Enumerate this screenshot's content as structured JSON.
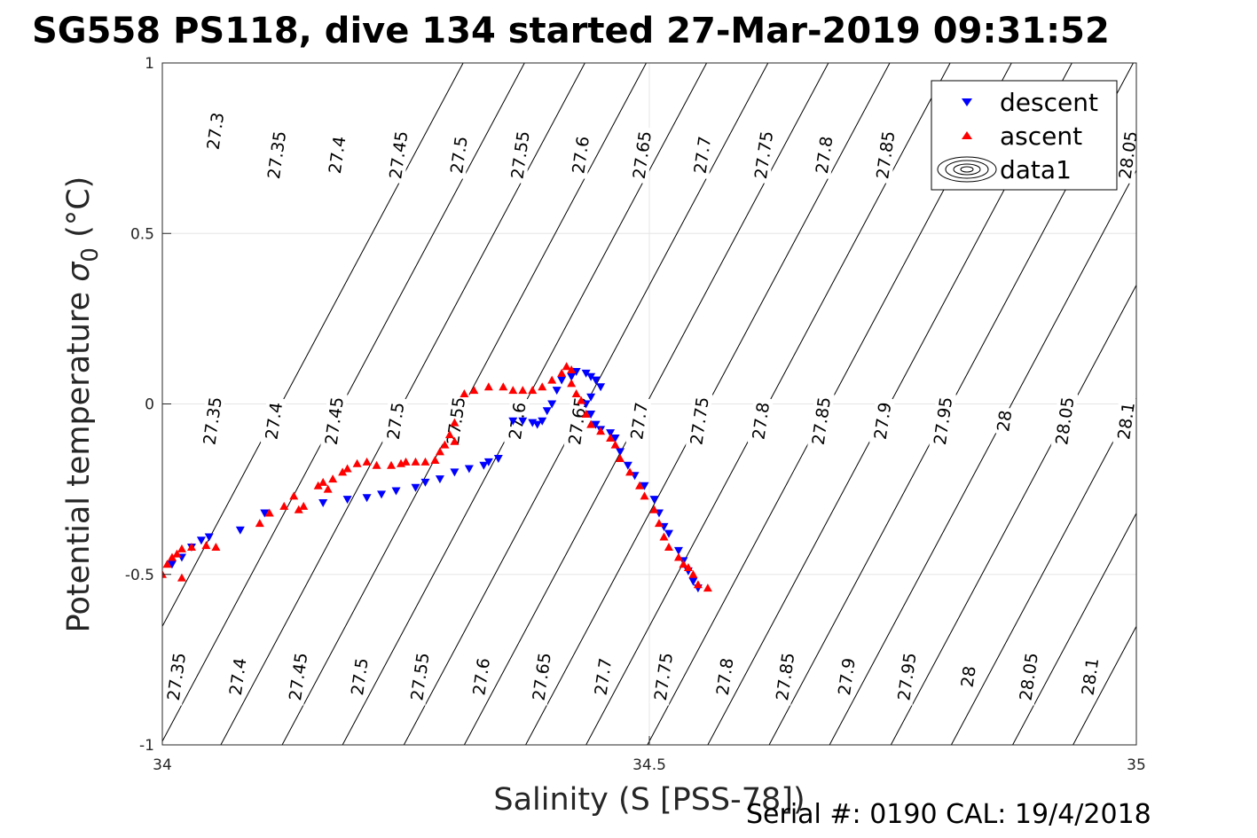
{
  "figure": {
    "title": "SG558 PS118, dive 134 started 27-Mar-2019 09:31:52",
    "footer": "Serial #: 0190  CAL: 19/4/2018"
  },
  "chart_data": {
    "type": "scatter",
    "title": "SG558 PS118, dive 134 started 27-Mar-2019 09:31:52",
    "xlabel": "Salinity (S [PSS-78])",
    "ylabel": "Potential temperature σ₀ (°C)",
    "ylabel_parts": {
      "main": "Potential temperature ",
      "sym": "σ",
      "sub": "0",
      "unit": " (°C)"
    },
    "xlim": [
      34,
      35
    ],
    "ylim": [
      -1,
      1
    ],
    "xticks": [
      34,
      34.5,
      35
    ],
    "xtick_labels": [
      "34",
      "34.5",
      "35"
    ],
    "yticks": [
      -1,
      -0.5,
      0,
      0.5,
      1
    ],
    "ytick_labels": [
      "-1",
      "-0.5",
      "0",
      "0.5",
      "1"
    ],
    "grid": true,
    "legend_position": "top-right",
    "colors": {
      "descent": "#0000ff",
      "ascent": "#ff0000",
      "contour": "#000000",
      "grid": "#e6e6e6"
    },
    "legend": [
      {
        "name": "descent",
        "marker": "triangle-down",
        "color": "#0000ff"
      },
      {
        "name": "ascent",
        "marker": "triangle-up",
        "color": "#ff0000"
      },
      {
        "name": "data1",
        "marker": "contour-ellipses",
        "color": "#000000"
      }
    ],
    "density_contours": {
      "levels": [
        27.3,
        27.35,
        27.4,
        27.45,
        27.5,
        27.55,
        27.6,
        27.65,
        27.7,
        27.75,
        27.8,
        27.85,
        27.9,
        27.95,
        28.0,
        28.05,
        28.1
      ],
      "s_at_t_minus1": [
        33.935,
        33.998,
        34.06,
        34.123,
        34.185,
        34.248,
        34.31,
        34.373,
        34.435,
        34.498,
        34.56,
        34.623,
        34.685,
        34.748,
        34.81,
        34.873,
        34.935
      ],
      "t_slope_per_psu": 5.35,
      "labels": [
        {
          "text": "27.35",
          "s": 34.015,
          "t": -0.8
        },
        {
          "text": "27.4",
          "s": 34.078,
          "t": -0.8
        },
        {
          "text": "27.45",
          "s": 34.14,
          "t": -0.8
        },
        {
          "text": "27.5",
          "s": 34.203,
          "t": -0.8
        },
        {
          "text": "27.55",
          "s": 34.265,
          "t": -0.8
        },
        {
          "text": "27.6",
          "s": 34.328,
          "t": -0.8
        },
        {
          "text": "27.65",
          "s": 34.39,
          "t": -0.8
        },
        {
          "text": "27.7",
          "s": 34.453,
          "t": -0.8
        },
        {
          "text": "27.75",
          "s": 34.515,
          "t": -0.8
        },
        {
          "text": "27.8",
          "s": 34.578,
          "t": -0.8
        },
        {
          "text": "27.85",
          "s": 34.64,
          "t": -0.8
        },
        {
          "text": "27.9",
          "s": 34.703,
          "t": -0.8
        },
        {
          "text": "27.95",
          "s": 34.765,
          "t": -0.8
        },
        {
          "text": "28",
          "s": 34.828,
          "t": -0.8
        },
        {
          "text": "28.05",
          "s": 34.89,
          "t": -0.8
        },
        {
          "text": "28.1",
          "s": 34.953,
          "t": -0.8
        },
        {
          "text": "27.35",
          "s": 34.052,
          "t": -0.05
        },
        {
          "text": "27.4",
          "s": 34.115,
          "t": -0.05
        },
        {
          "text": "27.45",
          "s": 34.177,
          "t": -0.05
        },
        {
          "text": "27.5",
          "s": 34.24,
          "t": -0.05
        },
        {
          "text": "27.55",
          "s": 34.302,
          "t": -0.05
        },
        {
          "text": "27.6",
          "s": 34.365,
          "t": -0.05
        },
        {
          "text": "27.65",
          "s": 34.427,
          "t": -0.05
        },
        {
          "text": "27.7",
          "s": 34.49,
          "t": -0.05
        },
        {
          "text": "27.75",
          "s": 34.552,
          "t": -0.05
        },
        {
          "text": "27.8",
          "s": 34.615,
          "t": -0.05
        },
        {
          "text": "27.85",
          "s": 34.677,
          "t": -0.05
        },
        {
          "text": "27.9",
          "s": 34.74,
          "t": -0.05
        },
        {
          "text": "27.95",
          "s": 34.802,
          "t": -0.05
        },
        {
          "text": "28",
          "s": 34.865,
          "t": -0.05
        },
        {
          "text": "28.05",
          "s": 34.927,
          "t": -0.05
        },
        {
          "text": "28.1",
          "s": 34.99,
          "t": -0.05
        },
        {
          "text": "27.3",
          "s": 34.055,
          "t": 0.8
        },
        {
          "text": "27.35",
          "s": 34.118,
          "t": 0.73
        },
        {
          "text": "27.4",
          "s": 34.18,
          "t": 0.73
        },
        {
          "text": "27.45",
          "s": 34.243,
          "t": 0.73
        },
        {
          "text": "27.5",
          "s": 34.305,
          "t": 0.73
        },
        {
          "text": "27.55",
          "s": 34.368,
          "t": 0.73
        },
        {
          "text": "27.6",
          "s": 34.43,
          "t": 0.73
        },
        {
          "text": "27.65",
          "s": 34.493,
          "t": 0.73
        },
        {
          "text": "27.7",
          "s": 34.555,
          "t": 0.73
        },
        {
          "text": "27.75",
          "s": 34.618,
          "t": 0.73
        },
        {
          "text": "27.8",
          "s": 34.68,
          "t": 0.73
        },
        {
          "text": "27.85",
          "s": 34.743,
          "t": 0.73
        },
        {
          "text": "28.05",
          "s": 34.992,
          "t": 0.73
        }
      ]
    },
    "series": [
      {
        "name": "descent",
        "marker": "triangle-down",
        "color": "#0000ff",
        "points": [
          [
            34.01,
            -0.47
          ],
          [
            34.02,
            -0.45
          ],
          [
            34.03,
            -0.42
          ],
          [
            34.04,
            -0.4
          ],
          [
            34.048,
            -0.39
          ],
          [
            34.08,
            -0.37
          ],
          [
            34.105,
            -0.32
          ],
          [
            34.165,
            -0.29
          ],
          [
            34.19,
            -0.28
          ],
          [
            34.21,
            -0.275
          ],
          [
            34.225,
            -0.265
          ],
          [
            34.24,
            -0.255
          ],
          [
            34.26,
            -0.245
          ],
          [
            34.27,
            -0.23
          ],
          [
            34.285,
            -0.22
          ],
          [
            34.3,
            -0.2
          ],
          [
            34.315,
            -0.19
          ],
          [
            34.33,
            -0.18
          ],
          [
            34.335,
            -0.17
          ],
          [
            34.345,
            -0.16
          ],
          [
            34.36,
            -0.05
          ],
          [
            34.37,
            -0.05
          ],
          [
            34.38,
            -0.055
          ],
          [
            34.385,
            -0.06
          ],
          [
            34.39,
            -0.05
          ],
          [
            34.395,
            -0.02
          ],
          [
            34.4,
            0.0
          ],
          [
            34.405,
            0.04
          ],
          [
            34.41,
            0.07
          ],
          [
            34.42,
            0.08
          ],
          [
            34.425,
            0.095
          ],
          [
            34.435,
            0.09
          ],
          [
            34.44,
            0.08
          ],
          [
            34.445,
            0.07
          ],
          [
            34.45,
            0.05
          ],
          [
            34.44,
            0.02
          ],
          [
            34.435,
            0.0
          ],
          [
            34.44,
            -0.03
          ],
          [
            34.445,
            -0.06
          ],
          [
            34.45,
            -0.075
          ],
          [
            34.46,
            -0.085
          ],
          [
            34.465,
            -0.1
          ],
          [
            34.47,
            -0.14
          ],
          [
            34.478,
            -0.18
          ],
          [
            34.485,
            -0.21
          ],
          [
            34.495,
            -0.24
          ],
          [
            34.505,
            -0.28
          ],
          [
            34.51,
            -0.32
          ],
          [
            34.515,
            -0.36
          ],
          [
            34.52,
            -0.38
          ],
          [
            34.53,
            -0.43
          ],
          [
            34.535,
            -0.46
          ],
          [
            34.54,
            -0.49
          ],
          [
            34.545,
            -0.52
          ],
          [
            34.55,
            -0.54
          ]
        ]
      },
      {
        "name": "ascent",
        "marker": "triangle-up",
        "color": "#ff0000",
        "points": [
          [
            33.995,
            -0.48
          ],
          [
            34.0,
            -0.5
          ],
          [
            34.005,
            -0.47
          ],
          [
            34.01,
            -0.45
          ],
          [
            34.015,
            -0.44
          ],
          [
            34.02,
            -0.425
          ],
          [
            34.02,
            -0.51
          ],
          [
            34.03,
            -0.42
          ],
          [
            34.045,
            -0.415
          ],
          [
            34.055,
            -0.42
          ],
          [
            34.1,
            -0.35
          ],
          [
            34.11,
            -0.32
          ],
          [
            34.125,
            -0.3
          ],
          [
            34.135,
            -0.27
          ],
          [
            34.14,
            -0.31
          ],
          [
            34.145,
            -0.3
          ],
          [
            34.16,
            -0.24
          ],
          [
            34.165,
            -0.23
          ],
          [
            34.17,
            -0.25
          ],
          [
            34.175,
            -0.22
          ],
          [
            34.185,
            -0.2
          ],
          [
            34.19,
            -0.19
          ],
          [
            34.2,
            -0.175
          ],
          [
            34.21,
            -0.17
          ],
          [
            34.22,
            -0.18
          ],
          [
            34.235,
            -0.18
          ],
          [
            34.245,
            -0.175
          ],
          [
            34.25,
            -0.17
          ],
          [
            34.26,
            -0.17
          ],
          [
            34.27,
            -0.17
          ],
          [
            34.28,
            -0.165
          ],
          [
            34.285,
            -0.14
          ],
          [
            34.29,
            -0.12
          ],
          [
            34.295,
            -0.09
          ],
          [
            34.3,
            -0.055
          ],
          [
            34.3,
            -0.11
          ],
          [
            34.31,
            0.03
          ],
          [
            34.32,
            0.04
          ],
          [
            34.335,
            0.05
          ],
          [
            34.35,
            0.05
          ],
          [
            34.36,
            0.04
          ],
          [
            34.37,
            0.04
          ],
          [
            34.38,
            0.04
          ],
          [
            34.39,
            0.05
          ],
          [
            34.4,
            0.07
          ],
          [
            34.41,
            0.09
          ],
          [
            34.415,
            0.11
          ],
          [
            34.42,
            0.1
          ],
          [
            34.42,
            0.06
          ],
          [
            34.425,
            0.03
          ],
          [
            34.43,
            0.01
          ],
          [
            34.435,
            -0.03
          ],
          [
            34.44,
            -0.06
          ],
          [
            34.45,
            -0.08
          ],
          [
            34.46,
            -0.1
          ],
          [
            34.465,
            -0.12
          ],
          [
            34.47,
            -0.16
          ],
          [
            34.48,
            -0.2
          ],
          [
            34.49,
            -0.24
          ],
          [
            34.495,
            -0.27
          ],
          [
            34.505,
            -0.31
          ],
          [
            34.51,
            -0.35
          ],
          [
            34.515,
            -0.39
          ],
          [
            34.52,
            -0.42
          ],
          [
            34.53,
            -0.45
          ],
          [
            34.535,
            -0.47
          ],
          [
            34.54,
            -0.48
          ],
          [
            34.545,
            -0.5
          ],
          [
            34.55,
            -0.53
          ],
          [
            34.56,
            -0.54
          ]
        ]
      }
    ]
  }
}
